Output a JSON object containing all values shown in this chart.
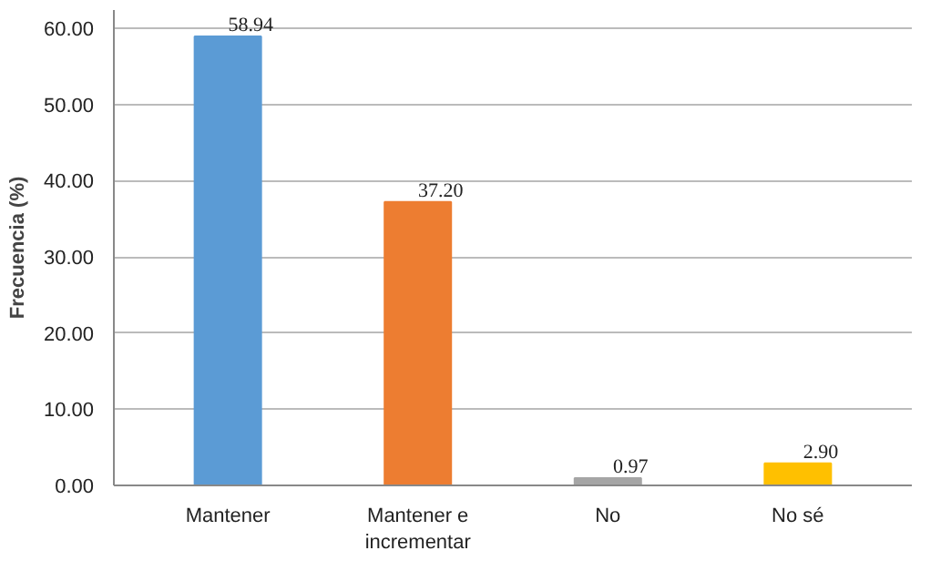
{
  "chart_data": {
    "type": "bar",
    "ylabel": "Frecuencia (%)",
    "categories": [
      "Mantener",
      "Mantener e incrementar",
      "No",
      "No sé"
    ],
    "values": [
      58.94,
      37.2,
      0.97,
      2.9
    ],
    "colors": [
      "#5b9bd5",
      "#ed7d31",
      "#a5a5a5",
      "#ffc000"
    ],
    "value_labels": [
      "58.94",
      "37.20",
      "0.97",
      "2.90"
    ],
    "ylim": [
      0,
      60
    ],
    "yticks": [
      {
        "value": 0,
        "label": "0.00"
      },
      {
        "value": 10,
        "label": "10.00"
      },
      {
        "value": 20,
        "label": "20.00"
      },
      {
        "value": 30,
        "label": "30.00"
      },
      {
        "value": 40,
        "label": "40.00"
      },
      {
        "value": 50,
        "label": "50.00"
      },
      {
        "value": 60,
        "label": "60.00"
      }
    ],
    "grid": "y"
  }
}
